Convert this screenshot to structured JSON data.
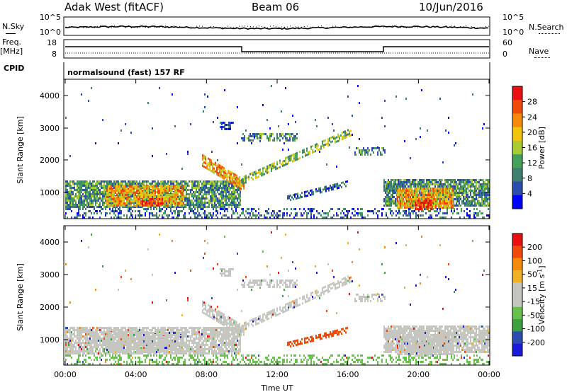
{
  "header": {
    "station": "Adak West (fitACF)",
    "beam": "Beam 06",
    "date": "10/Jun/2016"
  },
  "panels": {
    "nsky_label": "N.Sky",
    "nsearch_label": "N.Search",
    "freq_label_line1": "Freq.",
    "freq_label_line2": "[MHz]",
    "nave_label": "Nave",
    "cpid_label": "CPID",
    "cpid_value": "normalsound (fast) 157 RF",
    "nsky_ticks": [
      "10^5",
      "10^0"
    ],
    "nsearch_ticks": [
      "10^5",
      "10^0"
    ],
    "freq_ticks": [
      "18",
      "8"
    ],
    "nave_ticks": [
      "60",
      "0"
    ]
  },
  "colors": {
    "power": [
      "#0000ff",
      "#2e4bb0",
      "#3c7f6e",
      "#45a05a",
      "#a8cc30",
      "#f2c40e",
      "#f58a0a",
      "#f04a08",
      "#e81010"
    ],
    "velocity": [
      "#e81010",
      "#f04a08",
      "#f58a0a",
      "#f0b02a",
      "#c6c6c0",
      "#c6c6c0",
      "#66c24a",
      "#3aa040",
      "#2e4bb0",
      "#1a1ad8"
    ]
  },
  "chart_data": [
    {
      "type": "heatmap",
      "name": "power",
      "ylabel": "Slant Range [km]",
      "y_ticks": [
        "1000",
        "2000",
        "3000",
        "4000"
      ],
      "colorbar_label": "Power [dB]",
      "colorbar_ticks": [
        "4",
        "8",
        "12",
        "16",
        "20",
        "24",
        "28"
      ]
    },
    {
      "type": "heatmap",
      "name": "velocity",
      "ylabel": "Slant Range [km]",
      "y_ticks": [
        "1000",
        "2000",
        "3000",
        "4000"
      ],
      "colorbar_label": "Velocity [m s",
      "colorbar_label_sup": "-1",
      "colorbar_label_end": "]",
      "colorbar_ticks": [
        "200",
        "100",
        "50",
        "15",
        "-15",
        "-50",
        "-100",
        "-200"
      ]
    }
  ],
  "x_axis": {
    "label": "Time UT",
    "ticks": [
      "00:00",
      "04:00",
      "08:00",
      "12:00",
      "16:00",
      "20:00",
      "00:00"
    ]
  }
}
